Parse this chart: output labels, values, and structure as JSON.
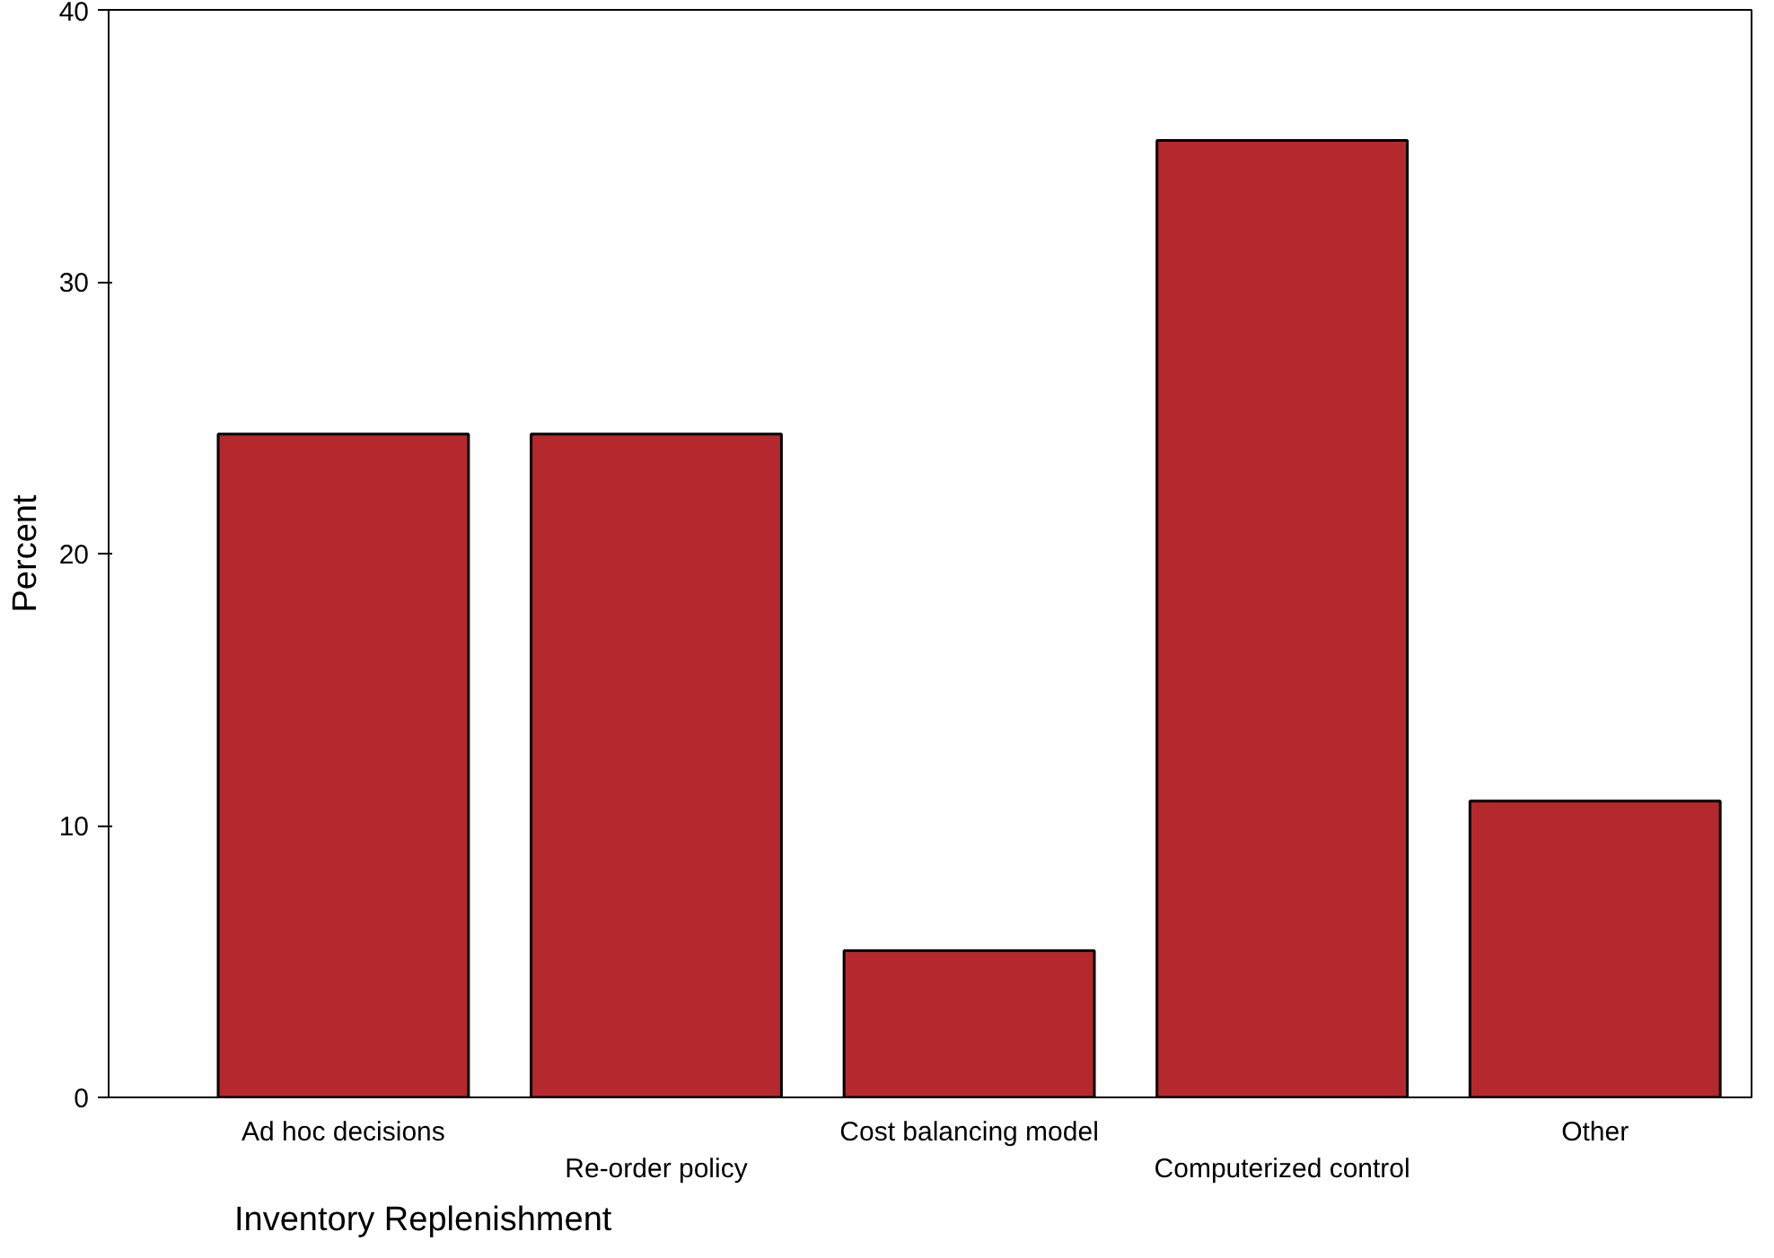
{
  "chart_data": {
    "type": "bar",
    "xlabel": "Inventory Replenishment",
    "ylabel": "Percent",
    "categories": [
      "Ad hoc decisions",
      "Re-order policy",
      "Cost balancing model",
      "Computerized control",
      "Other"
    ],
    "values": [
      24.4,
      24.4,
      5.4,
      35.2,
      10.9
    ],
    "color": "#b5292e",
    "ylim": [
      0,
      40
    ],
    "yticks": [
      0,
      10,
      20,
      30,
      40
    ],
    "grid": false
  }
}
